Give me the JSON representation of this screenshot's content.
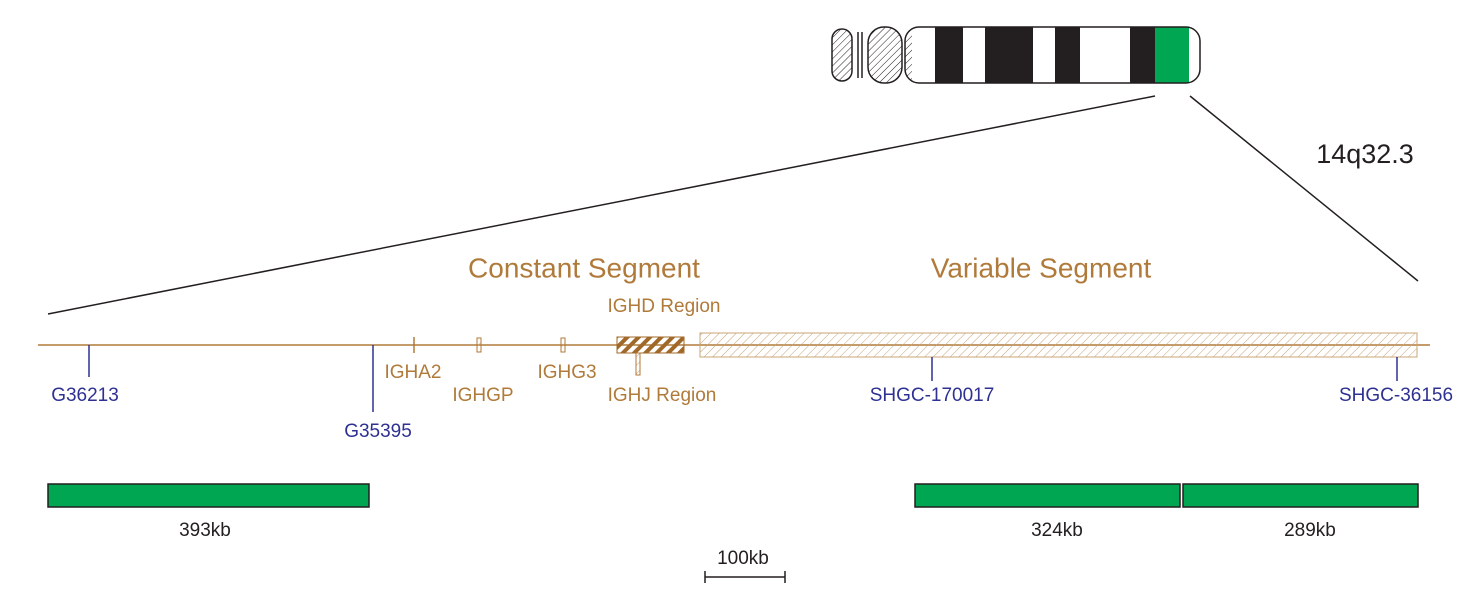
{
  "band": "14q32.3",
  "segments": {
    "constant": "Constant Segment",
    "variable": "Variable Segment"
  },
  "regions": {
    "ighd": "IGHD Region",
    "ighj": "IGHJ Region"
  },
  "genes": [
    "IGHA2",
    "IGHGP",
    "IGHG3"
  ],
  "markers": [
    "G36213",
    "G35395",
    "SHGC-170017",
    "SHGC-36156"
  ],
  "probes": [
    "393kb",
    "324kb",
    "289kb"
  ],
  "scale": "100kb"
}
